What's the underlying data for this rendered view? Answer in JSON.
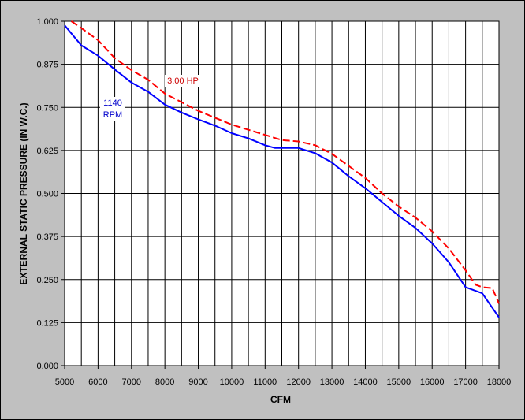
{
  "chart_data": {
    "type": "line",
    "title": "",
    "xlabel": "CFM",
    "ylabel": "EXTERNAL STATIC PRESSURE (IN W.C.)",
    "xlim": [
      5000,
      18000
    ],
    "ylim": [
      0,
      1.0
    ],
    "grid": true,
    "x_ticks": [
      "5000",
      "6000",
      "7000",
      "8000",
      "9000",
      "10000",
      "11000",
      "12000",
      "13000",
      "14000",
      "15000",
      "16000",
      "17000",
      "18000"
    ],
    "y_ticks": [
      "0.000",
      "0.125",
      "0.250",
      "0.375",
      "0.500",
      "0.625",
      "0.750",
      "0.875",
      "1.000"
    ],
    "annotations": [
      {
        "text": "3.00 HP",
        "color": "#cc0000"
      },
      {
        "text": "1140",
        "color": "#0000cc"
      },
      {
        "text": "RPM",
        "color": "#0000cc"
      }
    ],
    "series": [
      {
        "color": "#0000ff",
        "style": "solid",
        "points": [
          [
            5000,
            0.988
          ],
          [
            5500,
            0.93
          ],
          [
            6000,
            0.9
          ],
          [
            6500,
            0.86
          ],
          [
            7000,
            0.822
          ],
          [
            7500,
            0.795
          ],
          [
            8000,
            0.758
          ],
          [
            8500,
            0.735
          ],
          [
            9000,
            0.715
          ],
          [
            9500,
            0.697
          ],
          [
            10000,
            0.675
          ],
          [
            10500,
            0.66
          ],
          [
            11000,
            0.64
          ],
          [
            11300,
            0.632
          ],
          [
            12000,
            0.632
          ],
          [
            12500,
            0.617
          ],
          [
            13000,
            0.59
          ],
          [
            13500,
            0.55
          ],
          [
            14000,
            0.515
          ],
          [
            14500,
            0.475
          ],
          [
            15000,
            0.435
          ],
          [
            15500,
            0.4
          ],
          [
            16000,
            0.355
          ],
          [
            16500,
            0.3
          ],
          [
            17000,
            0.228
          ],
          [
            17500,
            0.21
          ],
          [
            18000,
            0.14
          ]
        ]
      },
      {
        "color": "#ff0000",
        "style": "dashed",
        "points": [
          [
            5200,
            1.0
          ],
          [
            5500,
            0.98
          ],
          [
            6000,
            0.945
          ],
          [
            6500,
            0.893
          ],
          [
            7000,
            0.858
          ],
          [
            7500,
            0.83
          ],
          [
            8000,
            0.79
          ],
          [
            8500,
            0.765
          ],
          [
            9000,
            0.74
          ],
          [
            9500,
            0.72
          ],
          [
            10000,
            0.7
          ],
          [
            10500,
            0.685
          ],
          [
            11000,
            0.67
          ],
          [
            11500,
            0.655
          ],
          [
            12000,
            0.651
          ],
          [
            12500,
            0.64
          ],
          [
            13000,
            0.615
          ],
          [
            13500,
            0.58
          ],
          [
            14000,
            0.545
          ],
          [
            14500,
            0.5
          ],
          [
            15000,
            0.462
          ],
          [
            15500,
            0.43
          ],
          [
            16000,
            0.39
          ],
          [
            16500,
            0.34
          ],
          [
            17000,
            0.277
          ],
          [
            17300,
            0.235
          ],
          [
            17500,
            0.228
          ],
          [
            17800,
            0.225
          ],
          [
            18000,
            0.18
          ]
        ]
      }
    ]
  }
}
